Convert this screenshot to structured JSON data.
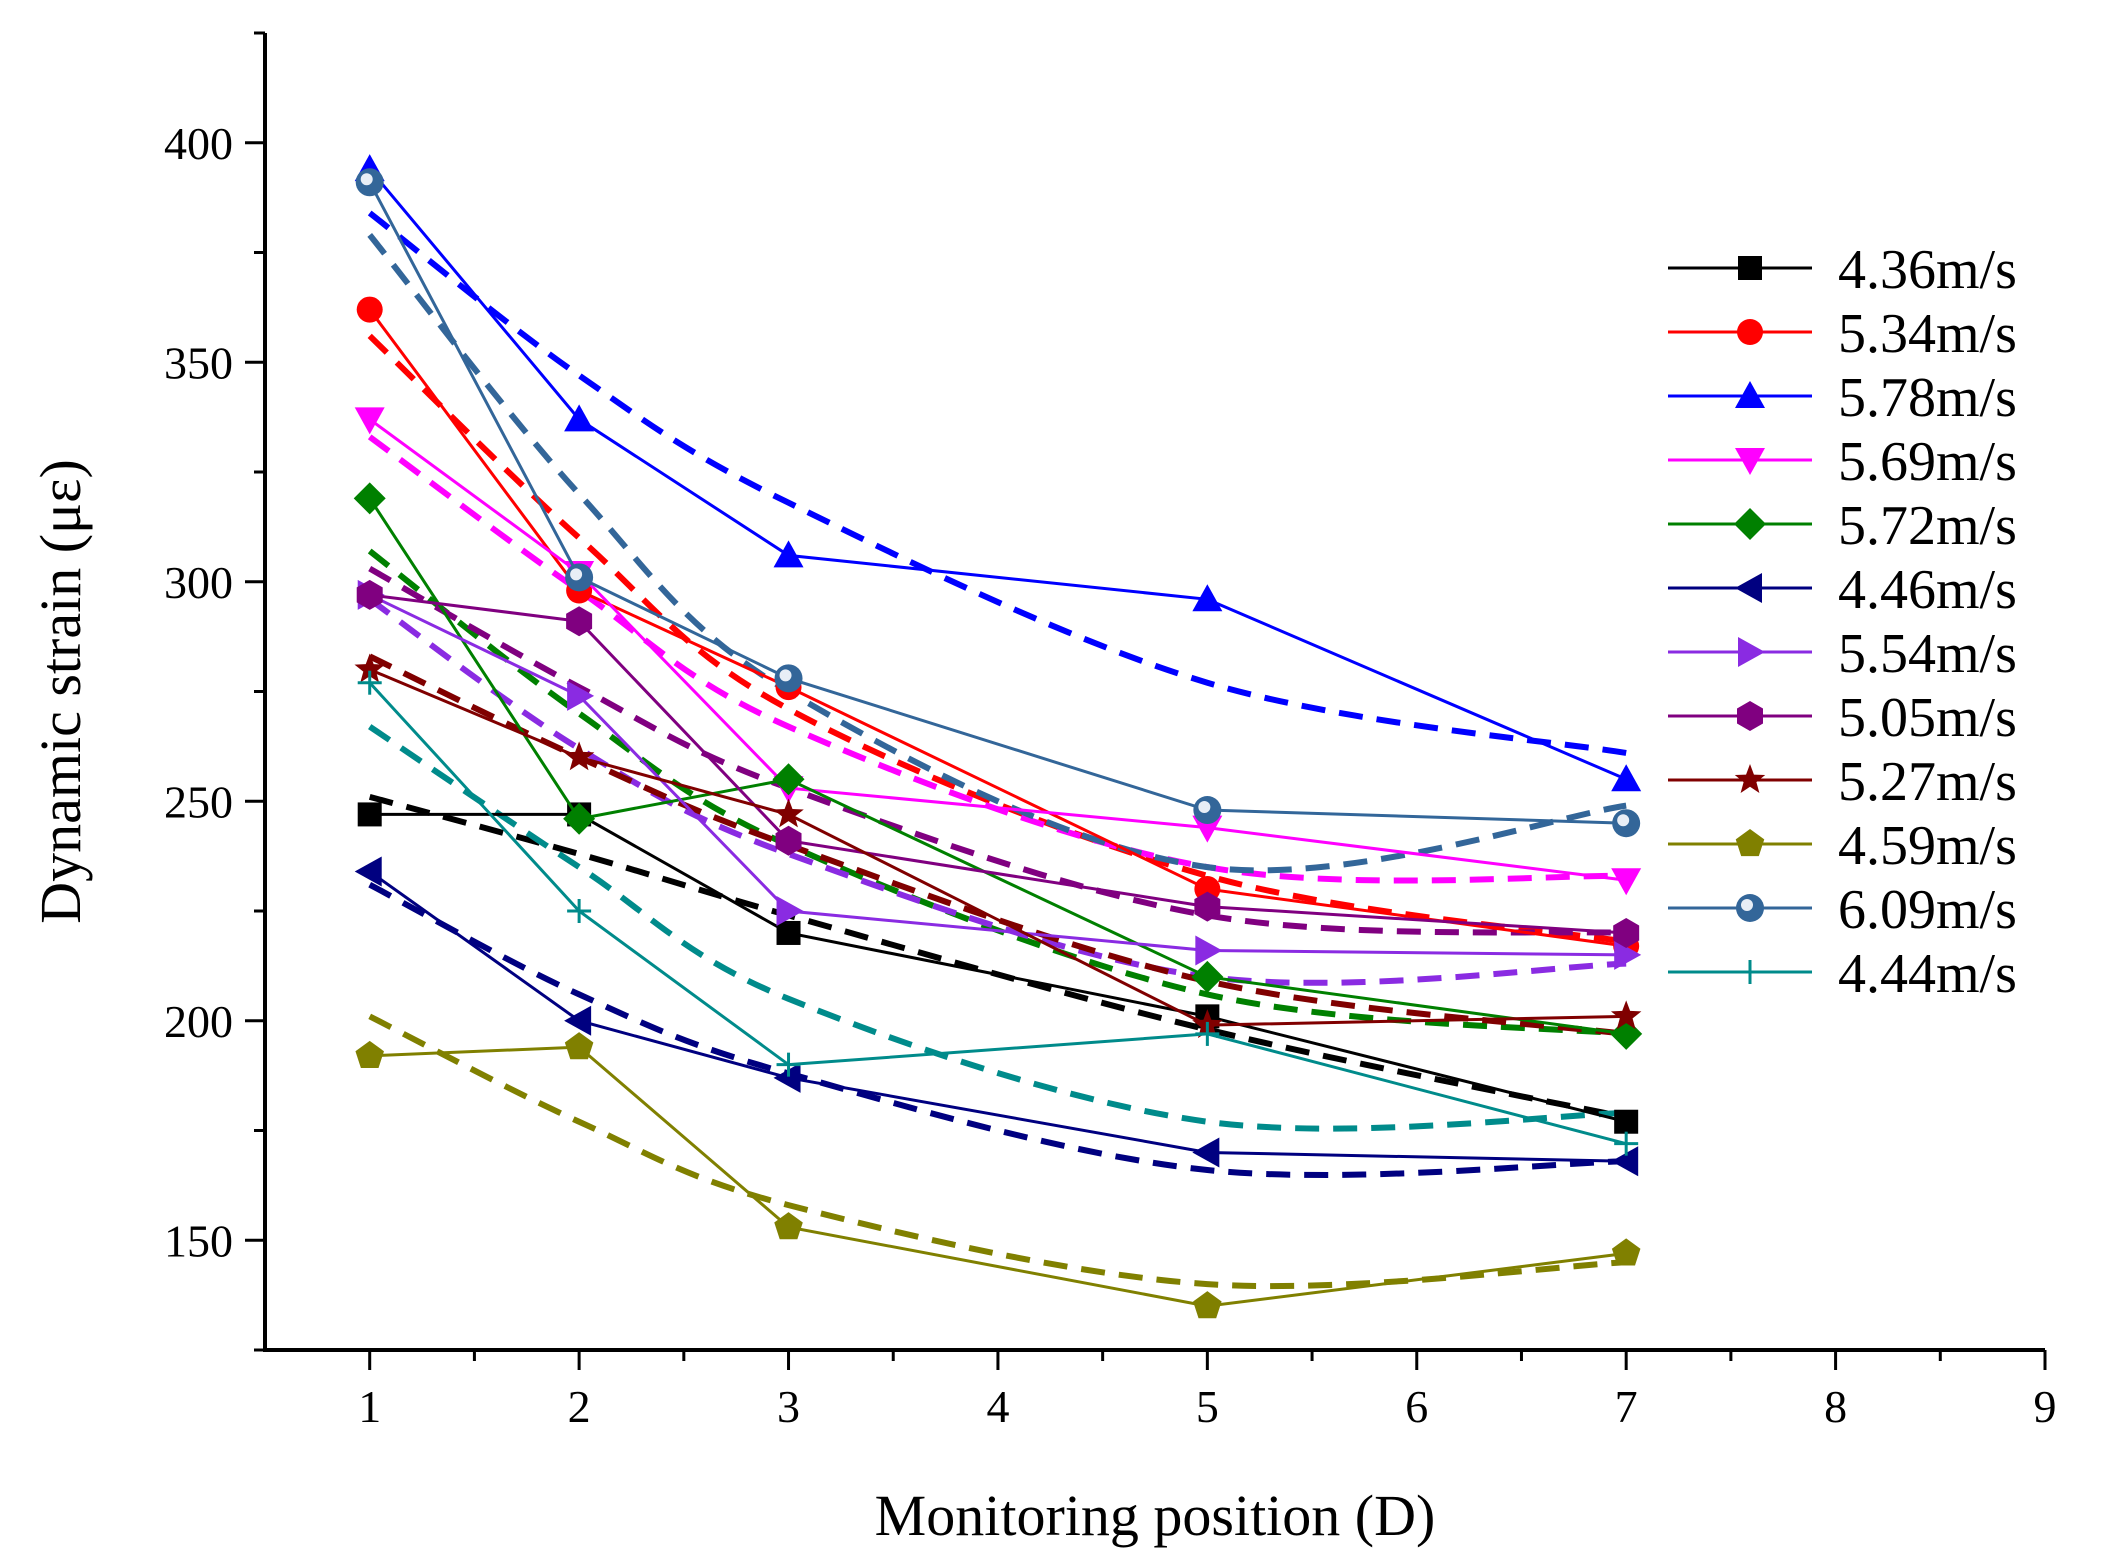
{
  "chart_data": {
    "type": "line",
    "title": "",
    "xlabel": "Monitoring position (D)",
    "ylabel": "Dynamic strain (με)",
    "xlim": [
      0.5,
      9
    ],
    "ylim": [
      125,
      425
    ],
    "xticks": [
      1,
      2,
      3,
      4,
      5,
      6,
      7,
      8,
      9
    ],
    "yticks": [
      150,
      200,
      250,
      300,
      350,
      400
    ],
    "x": [
      1,
      2,
      3,
      5,
      7
    ],
    "legend_position": "right",
    "series": [
      {
        "name": "4.36m/s",
        "color": "#000000",
        "marker": "square",
        "values": [
          247,
          247,
          220,
          201,
          177
        ],
        "fit": [
          251,
          238,
          224,
          198,
          178
        ]
      },
      {
        "name": "5.34m/s",
        "color": "#ff0000",
        "marker": "circle",
        "values": [
          362,
          298,
          276,
          230,
          217
        ],
        "fit": [
          356,
          310,
          271,
          233,
          218
        ]
      },
      {
        "name": "5.78m/s",
        "color": "#0000ff",
        "marker": "triangle-up",
        "values": [
          394,
          337,
          306,
          296,
          255
        ],
        "fit": [
          384,
          347,
          318,
          277,
          261
        ]
      },
      {
        "name": "5.69m/s",
        "color": "#ff00ff",
        "marker": "triangle-down",
        "values": [
          337,
          302,
          253,
          244,
          232
        ],
        "fit": [
          333,
          298,
          267,
          235,
          233
        ]
      },
      {
        "name": "5.72m/s",
        "color": "#008000",
        "marker": "diamond",
        "values": [
          319,
          246,
          255,
          210,
          197
        ],
        "fit": [
          307,
          270,
          240,
          206,
          197
        ]
      },
      {
        "name": "4.46m/s",
        "color": "#000080",
        "marker": "triangle-left",
        "values": [
          234,
          200,
          187,
          170,
          168
        ],
        "fit": [
          231,
          206,
          188,
          166,
          168
        ]
      },
      {
        "name": "5.54m/s",
        "color": "#8a2be2",
        "marker": "triangle-right",
        "values": [
          297,
          274,
          225,
          216,
          215
        ],
        "fit": [
          296,
          262,
          238,
          210,
          213
        ]
      },
      {
        "name": "5.05m/s",
        "color": "#800080",
        "marker": "hexagon",
        "values": [
          297,
          291,
          241,
          226,
          220
        ],
        "fit": [
          303,
          276,
          253,
          224,
          220
        ]
      },
      {
        "name": "5.27m/s",
        "color": "#800000",
        "marker": "star",
        "values": [
          280,
          260,
          247,
          199,
          201
        ],
        "fit": [
          283,
          260,
          240,
          209,
          197
        ]
      },
      {
        "name": "4.59m/s",
        "color": "#808000",
        "marker": "pentagon",
        "values": [
          192,
          194,
          153,
          135,
          147
        ],
        "fit": [
          201,
          177,
          158,
          140,
          145
        ]
      },
      {
        "name": "6.09m/s",
        "color": "#336699",
        "marker": "sphere",
        "values": [
          391,
          301,
          278,
          248,
          245
        ],
        "fit": [
          379,
          320,
          275,
          235,
          249
        ]
      },
      {
        "name": "4.44m/s",
        "color": "#008b8b",
        "marker": "plus",
        "values": [
          277,
          225,
          190,
          197,
          172
        ],
        "fit": [
          267,
          235,
          205,
          177,
          179
        ]
      }
    ]
  }
}
